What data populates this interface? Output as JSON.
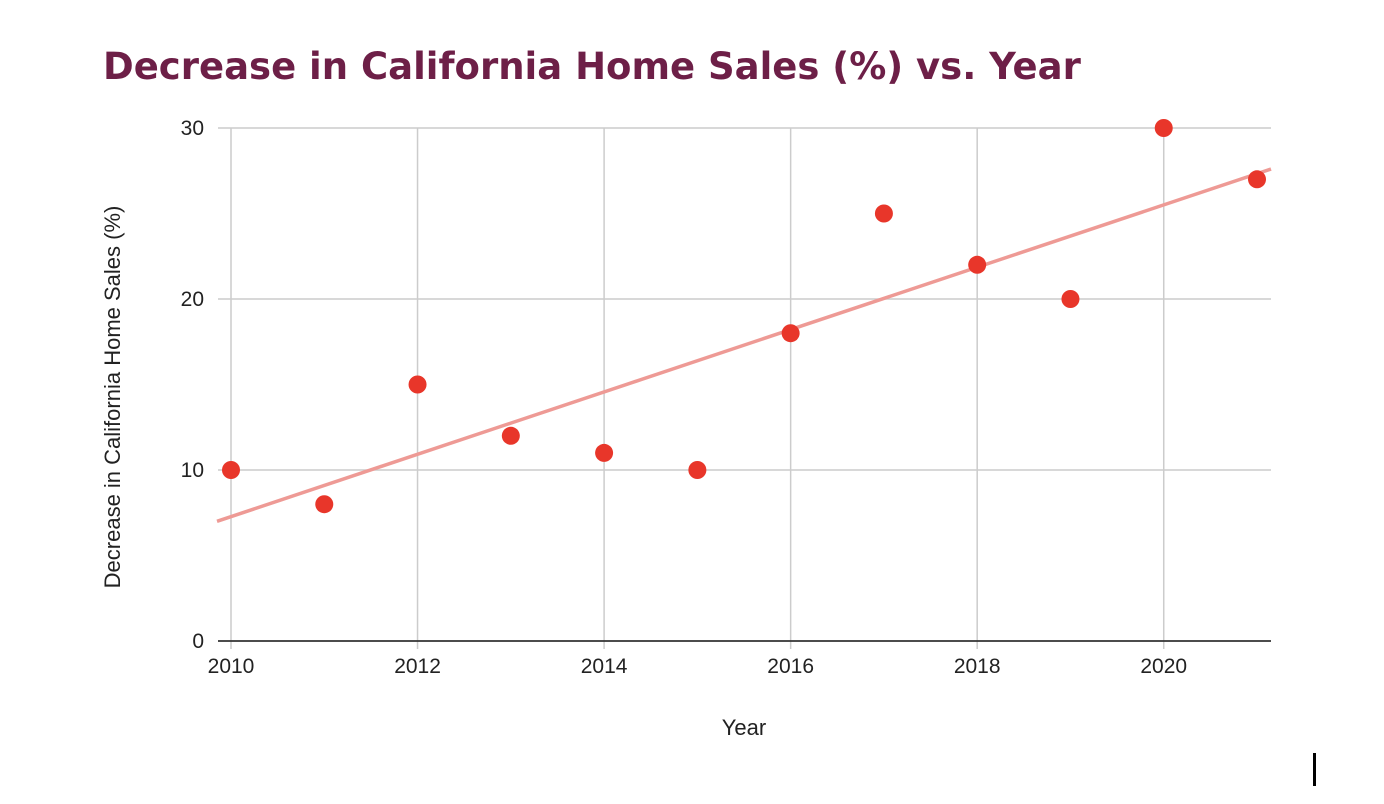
{
  "chart_data": {
    "type": "scatter",
    "title": "Decrease in California Home Sales (%) vs. Year",
    "xlabel": "Year",
    "ylabel": "Decrease in California Home Sales (%)",
    "xlim": [
      2010,
      2021.15
    ],
    "ylim": [
      0,
      30
    ],
    "x_ticks": [
      2010,
      2012,
      2014,
      2016,
      2018,
      2020
    ],
    "y_ticks": [
      0,
      10,
      20,
      30
    ],
    "grid": true,
    "legend": "none",
    "series": [
      {
        "x": [
          2010,
          2011,
          2012,
          2013,
          2014,
          2015,
          2016,
          2017,
          2018,
          2019,
          2020,
          2021
        ],
        "y": [
          10,
          8,
          15,
          12,
          11,
          10,
          18,
          25,
          22,
          20,
          30,
          27
        ],
        "color": "#e8362a"
      }
    ],
    "trendline": {
      "type": "linear",
      "start": [
        2009.85,
        7.0
      ],
      "end": [
        2021.15,
        27.6
      ],
      "color": "#ee9a95"
    }
  },
  "colors": {
    "title": "#6d1f47",
    "grid": "#cccccc",
    "axis": "#333333",
    "text": "#222222"
  }
}
